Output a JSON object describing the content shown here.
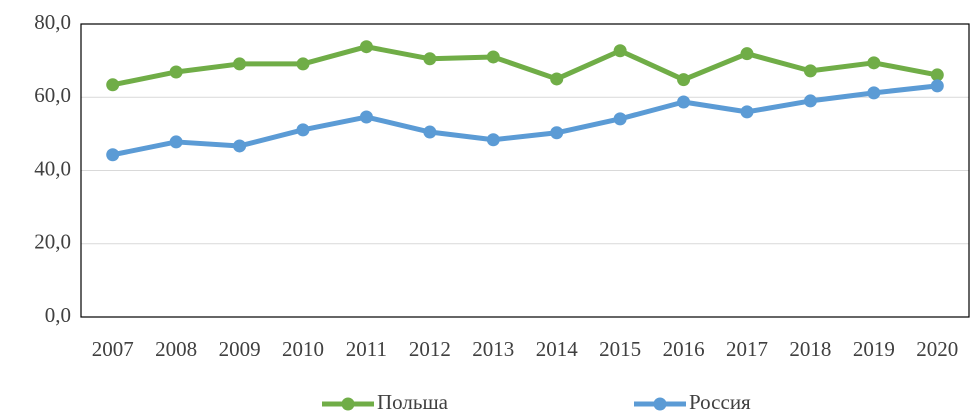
{
  "chart_data": {
    "type": "line",
    "categories": [
      "2007",
      "2008",
      "2009",
      "2010",
      "2011",
      "2012",
      "2013",
      "2014",
      "2015",
      "2016",
      "2017",
      "2018",
      "2019",
      "2020"
    ],
    "series": [
      {
        "name": "Польша",
        "color": "#70ad47",
        "values": [
          63.4,
          66.9,
          69.1,
          69.1,
          73.8,
          70.5,
          71.0,
          65.0,
          72.7,
          64.8,
          71.9,
          67.2,
          69.4,
          66.1
        ]
      },
      {
        "name": "Россия",
        "color": "#5b9bd5",
        "values": [
          44.3,
          47.8,
          46.7,
          51.1,
          54.6,
          50.5,
          48.4,
          50.3,
          54.1,
          58.7,
          56.0,
          59.0,
          61.2,
          63.1
        ]
      }
    ],
    "ylim": [
      0,
      80
    ],
    "yticks": [
      {
        "value": 0,
        "label": "0,0"
      },
      {
        "value": 20,
        "label": "20,0"
      },
      {
        "value": 40,
        "label": "40,0"
      },
      {
        "value": 60,
        "label": "60,0"
      },
      {
        "value": 80,
        "label": "80,0"
      }
    ],
    "grid": true,
    "legend": "bottom"
  }
}
